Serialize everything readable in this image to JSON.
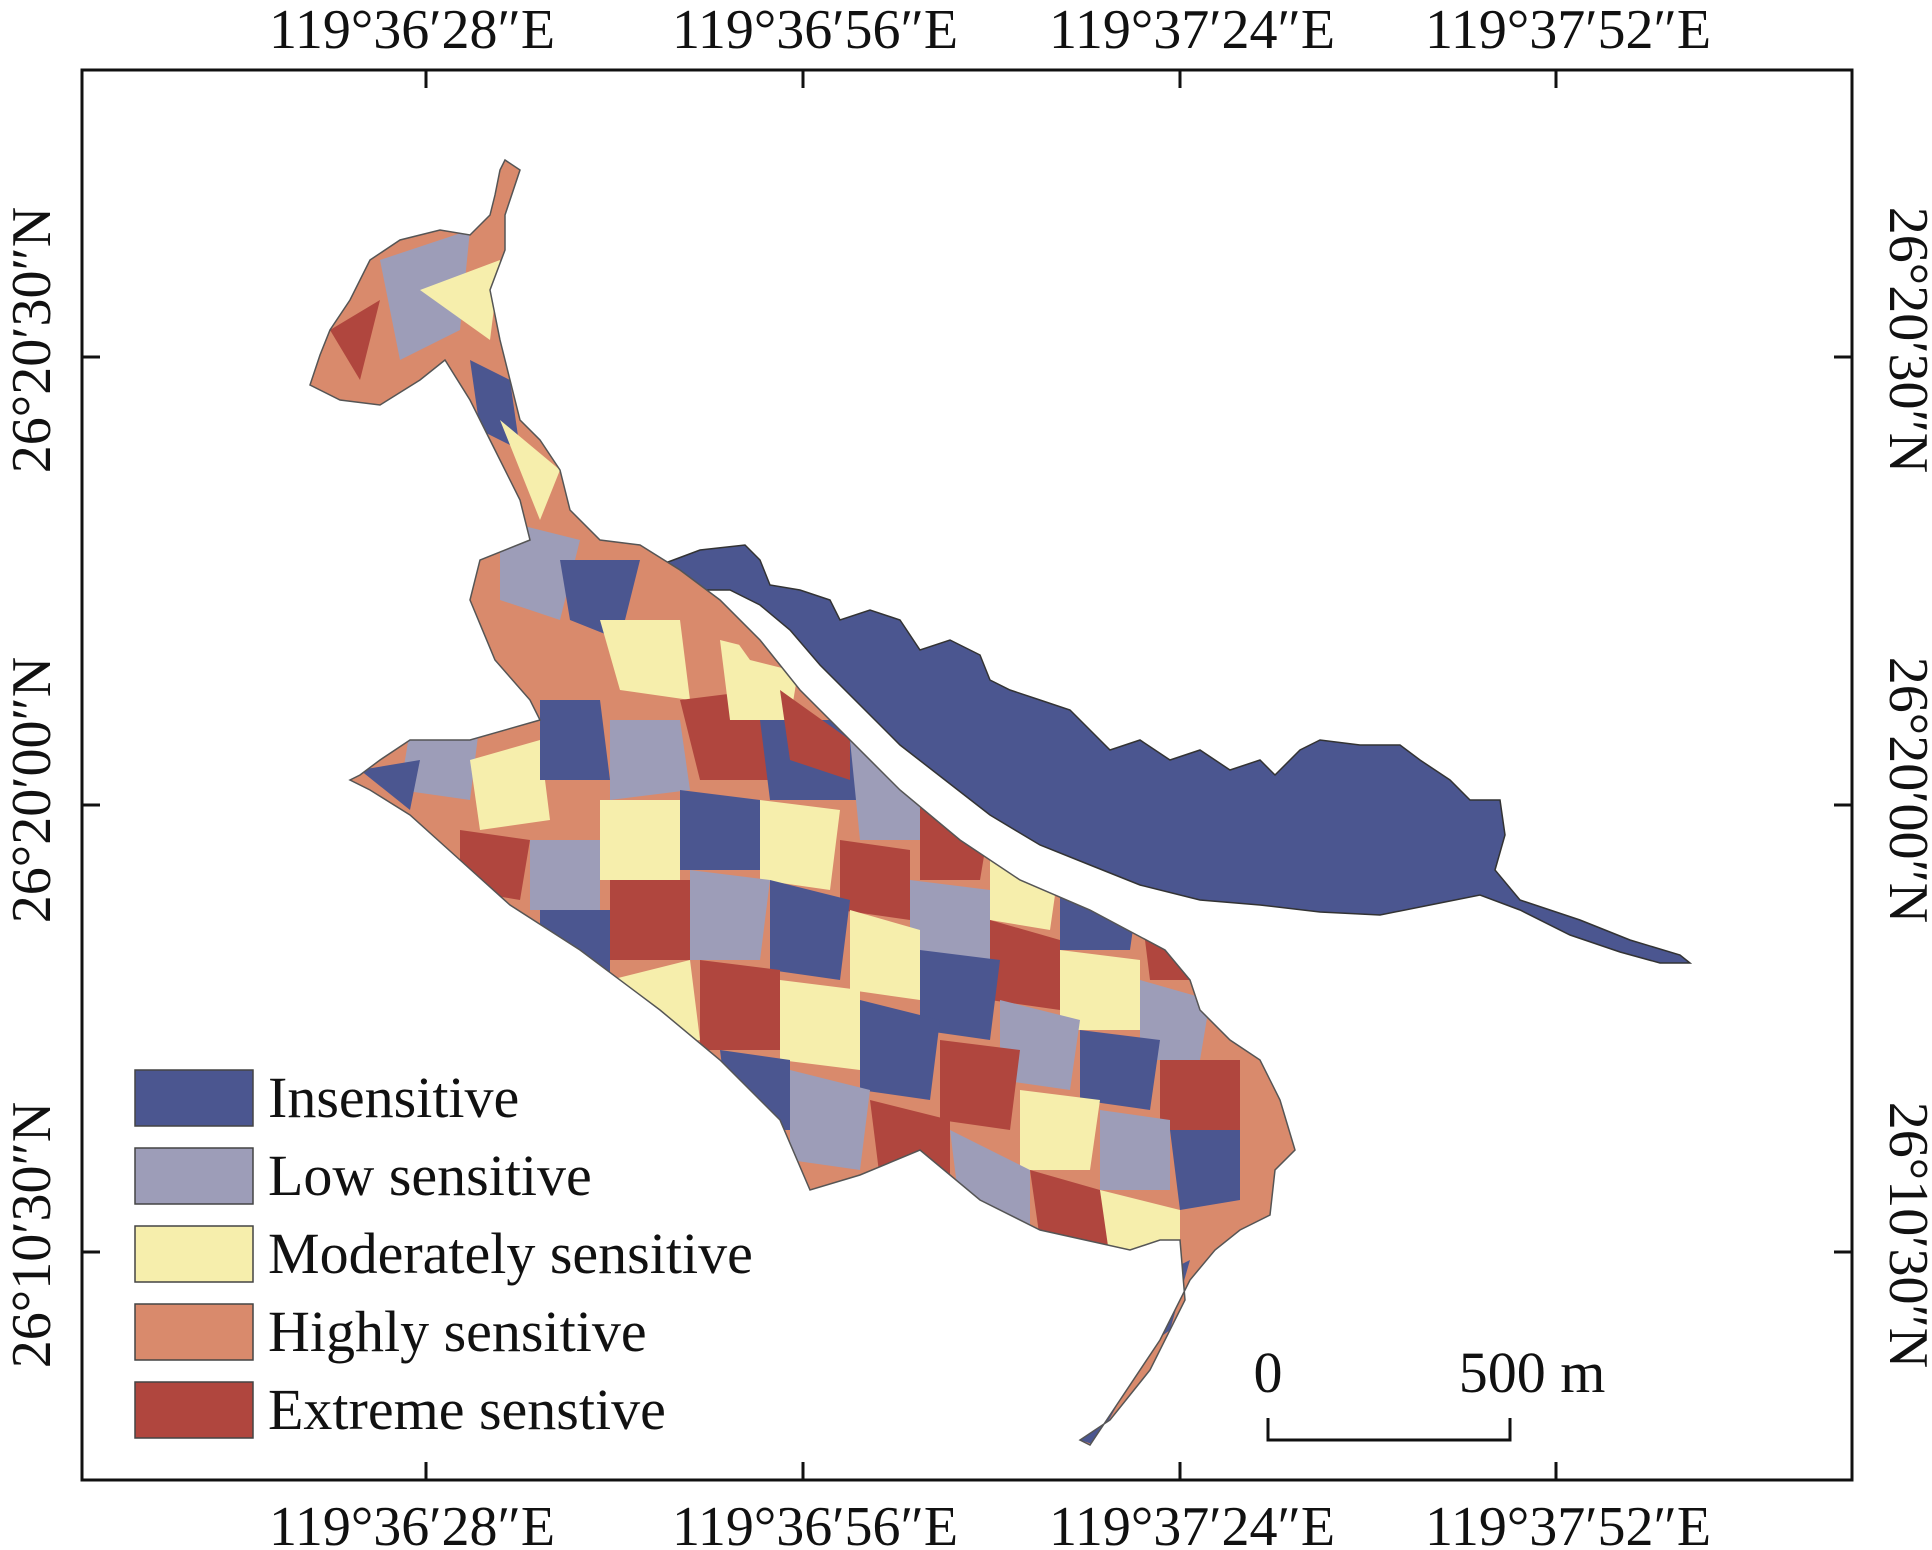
{
  "map": {
    "top_axis_labels": [
      "119°36′28″E",
      "119°36′56″E",
      "119°37′24″E",
      "119°37′52″E"
    ],
    "bottom_axis_labels": [
      "119°36′28″E",
      "119°36′56″E",
      "119°37′24″E",
      "119°37′52″E"
    ],
    "left_axis_labels": [
      "26°20′30″N",
      "26°20′00″N",
      "26°10′30″N"
    ],
    "right_axis_labels": [
      "26°20′30″N",
      "26°20′00″N",
      "26°10′30″N"
    ]
  },
  "legend": {
    "items": [
      {
        "label": "Insensitive",
        "color": "#4b5690"
      },
      {
        "label": "Low sensitive",
        "color": "#9d9db8"
      },
      {
        "label": "Moderately sensitive",
        "color": "#f6eeac"
      },
      {
        "label": "Highly sensitive",
        "color": "#d98a6c"
      },
      {
        "label": "Extreme senstive",
        "color": "#b0463e"
      }
    ]
  },
  "scale_bar": {
    "start_label": "0",
    "end_label": "500 m"
  },
  "colors": {
    "insensitive": "#4b5690",
    "low": "#9d9db8",
    "moderate": "#f6eeac",
    "high": "#d98a6c",
    "extreme": "#b0463e",
    "frame": "#111111"
  }
}
